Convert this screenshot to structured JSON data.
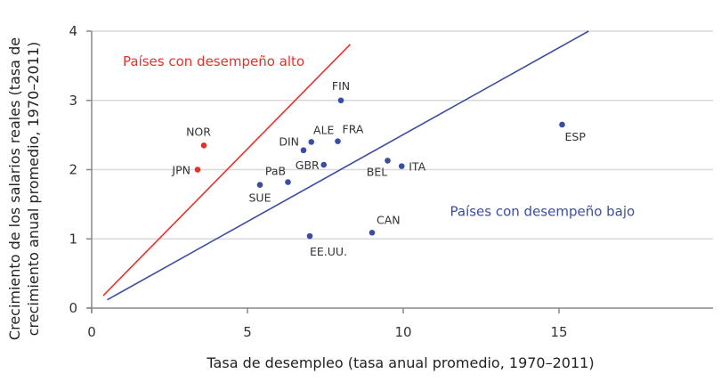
{
  "chart_data": {
    "type": "scatter",
    "title": "",
    "xlabel": "Tasa de desempleo (tasa anual promedio, 1970–2011)",
    "ylabel_lines": [
      "Crecimiento de los salarios reales (tasa de",
      "crecimiento anual promedio, 1970–2011)"
    ],
    "ylabel": "Crecimiento de los salarios reales (tasa de crecimiento anual promedio, 1970–2011)",
    "xlim": [
      0,
      20
    ],
    "ylim": [
      0,
      4
    ],
    "x_ticks": [
      0,
      5,
      10,
      15
    ],
    "y_ticks": [
      0,
      1,
      2,
      3,
      4
    ],
    "grid": "horizontal",
    "colors": {
      "high": "#e8302a",
      "low": "#3b4da0",
      "grid": "#d9d9d9",
      "axis": "#888888"
    },
    "series": [
      {
        "name": "Países con desempeño alto",
        "color": "#e8302a",
        "points": [
          {
            "label": "NOR",
            "x": 3.6,
            "y": 2.35,
            "lx": -6,
            "ly": -11,
            "anchor": "middle"
          },
          {
            "label": "JPN",
            "x": 3.4,
            "y": 2.0,
            "lx": -8,
            "ly": 5,
            "anchor": "end"
          }
        ]
      },
      {
        "name": "Países con desempeño bajo",
        "color": "#3b4da0",
        "points": [
          {
            "label": "FIN",
            "x": 8.0,
            "y": 3.0,
            "lx": 0,
            "ly": -12,
            "anchor": "middle"
          },
          {
            "label": "DIN",
            "x": 6.8,
            "y": 2.28,
            "lx": -5,
            "ly": -5,
            "anchor": "end"
          },
          {
            "label": "ALE",
            "x": 7.05,
            "y": 2.4,
            "lx": 14,
            "ly": -9,
            "anchor": "middle"
          },
          {
            "label": "FRA",
            "x": 7.9,
            "y": 2.41,
            "lx": 17,
            "ly": -9,
            "anchor": "middle"
          },
          {
            "label": "GBR",
            "x": 7.45,
            "y": 2.07,
            "lx": -5,
            "ly": 5,
            "anchor": "end"
          },
          {
            "label": "PaB",
            "x": 6.3,
            "y": 1.82,
            "lx": -14,
            "ly": -8,
            "anchor": "middle"
          },
          {
            "label": "SUE",
            "x": 5.4,
            "y": 1.78,
            "lx": 0,
            "ly": 19,
            "anchor": "middle"
          },
          {
            "label": "BEL",
            "x": 9.5,
            "y": 2.13,
            "lx": -12,
            "ly": 17,
            "anchor": "middle"
          },
          {
            "label": "ITA",
            "x": 9.95,
            "y": 2.05,
            "lx": 8,
            "ly": 5,
            "anchor": "start"
          },
          {
            "label": "CAN",
            "x": 9.0,
            "y": 1.09,
            "lx": 5,
            "ly": -10,
            "anchor": "start"
          },
          {
            "label": "EE.UU.",
            "x": 7.0,
            "y": 1.04,
            "lx": 0,
            "ly": 22,
            "anchor": "start"
          },
          {
            "label": "ESP",
            "x": 15.1,
            "y": 2.65,
            "lx": 3,
            "ly": 18,
            "anchor": "start"
          }
        ]
      }
    ],
    "lines": [
      {
        "name": "high-performance-boundary",
        "color": "#e8302a",
        "x1": 0.37,
        "y1": 0.18,
        "x2": 8.3,
        "y2": 3.81
      },
      {
        "name": "low-performance-trend",
        "color": "#3b4da0",
        "x1": 0.5,
        "y1": 0.12,
        "x2": 15.95,
        "y2": 4.0
      }
    ],
    "annotations": [
      {
        "text": "Países con desempeño alto",
        "x": 1.0,
        "y": 3.5,
        "color": "#e8302a"
      },
      {
        "text": "Países con desempeño bajo",
        "x": 11.5,
        "y": 1.33,
        "color": "#3b4da0"
      }
    ]
  }
}
